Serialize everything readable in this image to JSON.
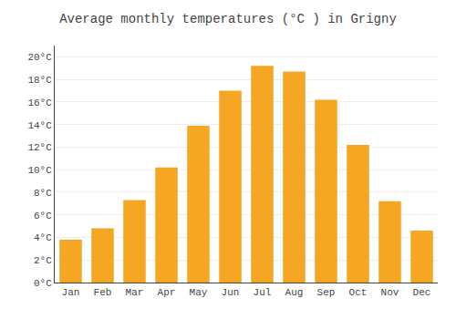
{
  "chart_data": {
    "type": "bar",
    "title": "Average monthly temperatures (°C ) in Grigny",
    "categories": [
      "Jan",
      "Feb",
      "Mar",
      "Apr",
      "May",
      "Jun",
      "Jul",
      "Aug",
      "Sep",
      "Oct",
      "Nov",
      "Dec"
    ],
    "values": [
      3.8,
      4.8,
      7.3,
      10.2,
      13.9,
      17.0,
      19.2,
      18.7,
      16.2,
      12.2,
      7.2,
      4.6
    ],
    "color": "#F5A623",
    "ylim": [
      0,
      21
    ],
    "yticks": [
      {
        "value": 0,
        "label": "0°C"
      },
      {
        "value": 2,
        "label": "2°C"
      },
      {
        "value": 4,
        "label": "4°C"
      },
      {
        "value": 6,
        "label": "6°C"
      },
      {
        "value": 8,
        "label": "8°C"
      },
      {
        "value": 10,
        "label": "10°C"
      },
      {
        "value": 12,
        "label": "12°C"
      },
      {
        "value": 14,
        "label": "14°C"
      },
      {
        "value": 16,
        "label": "16°C"
      },
      {
        "value": 18,
        "label": "18°C"
      },
      {
        "value": 20,
        "label": "20°C"
      }
    ],
    "grid": true
  }
}
